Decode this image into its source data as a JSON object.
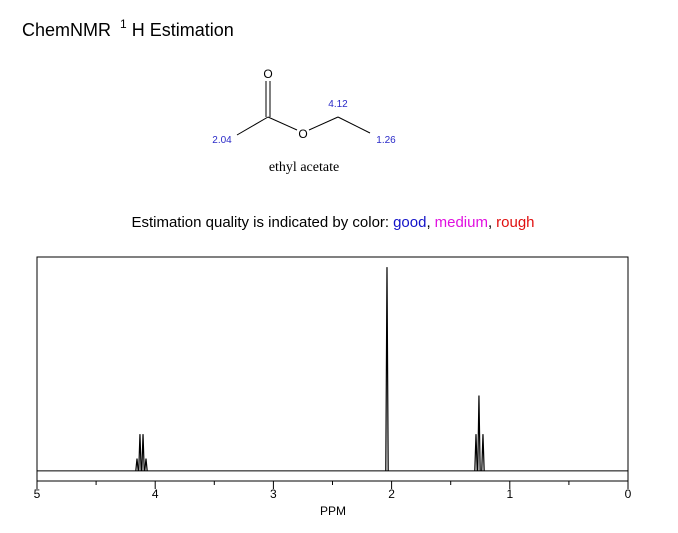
{
  "chart_data": {
    "type": "spectrum",
    "title": {
      "parts": [
        "ChemNMR",
        "1",
        "H Estimation"
      ]
    },
    "molecule": {
      "name": "ethyl acetate",
      "atoms": [
        "O",
        "O"
      ],
      "shifts": [
        2.04,
        4.12,
        1.26
      ],
      "shift_color": "#2a2ac8"
    },
    "legend": {
      "lead": "Estimation quality is indicated by color:",
      "separator": ",",
      "items": [
        {
          "label": "good",
          "color": "#1212c8"
        },
        {
          "label": "medium",
          "color": "#e010e0"
        },
        {
          "label": "rough",
          "color": "#e01010"
        }
      ]
    },
    "xlabel": "PPM",
    "xlim": [
      5,
      0
    ],
    "xticks": [
      5,
      4,
      3,
      2,
      1,
      0
    ],
    "xticks_minor": [
      4.5,
      3.5,
      2.5,
      1.5,
      0.5
    ],
    "ylim": [
      -5,
      105
    ],
    "x": [
      4.154,
      4.129,
      4.103,
      4.078,
      2.039,
      1.286,
      1.261,
      1.227
    ],
    "values": [
      6,
      18,
      18,
      6,
      100,
      18,
      37,
      18
    ],
    "color": "#000000"
  }
}
